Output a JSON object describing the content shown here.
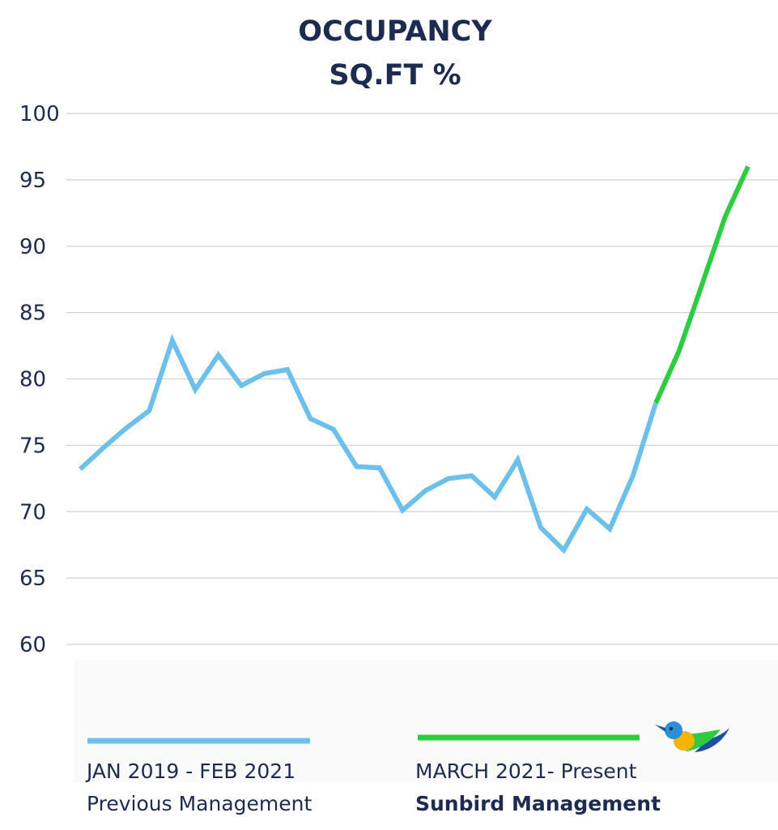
{
  "chart_data": {
    "type": "line",
    "title": [
      "OCCUPANCY",
      "SQ.FT %"
    ],
    "xlabel": "",
    "ylabel": "",
    "ylim": [
      60,
      100
    ],
    "y_ticks": [
      100,
      95,
      90,
      85,
      80,
      75,
      70,
      65,
      60
    ],
    "grid": true,
    "series": [
      {
        "name": "Previous Management",
        "color": "#6cc0e9",
        "x": [
          0,
          1,
          2,
          3,
          4,
          5,
          6,
          7,
          8,
          9,
          10,
          11,
          12,
          13,
          14,
          15,
          16,
          17,
          18,
          19,
          20,
          21,
          22,
          23,
          24,
          25
        ],
        "values": [
          73.2,
          74.8,
          76.3,
          77.6,
          82.9,
          79.2,
          81.8,
          79.5,
          80.4,
          80.7,
          77.0,
          76.2,
          73.4,
          73.3,
          70.1,
          71.6,
          72.5,
          72.7,
          71.1,
          73.9,
          68.8,
          67.1,
          70.2,
          68.7,
          72.7,
          78.2
        ]
      },
      {
        "name": "Sunbird Management",
        "color": "#2ecc40",
        "x": [
          25,
          26,
          27,
          28,
          29
        ],
        "values": [
          78.2,
          82.1,
          87.1,
          92.2,
          96.0
        ]
      }
    ],
    "legend": [
      {
        "line1": "JAN 2019 - FEB 2021",
        "line2": "Previous Management",
        "color": "#6cc0e9"
      },
      {
        "line1": "MARCH 2021- Present",
        "line2": "Sunbird Management",
        "color": "#2ecc40"
      }
    ]
  },
  "logo": {
    "name": "sunbird-logo"
  }
}
